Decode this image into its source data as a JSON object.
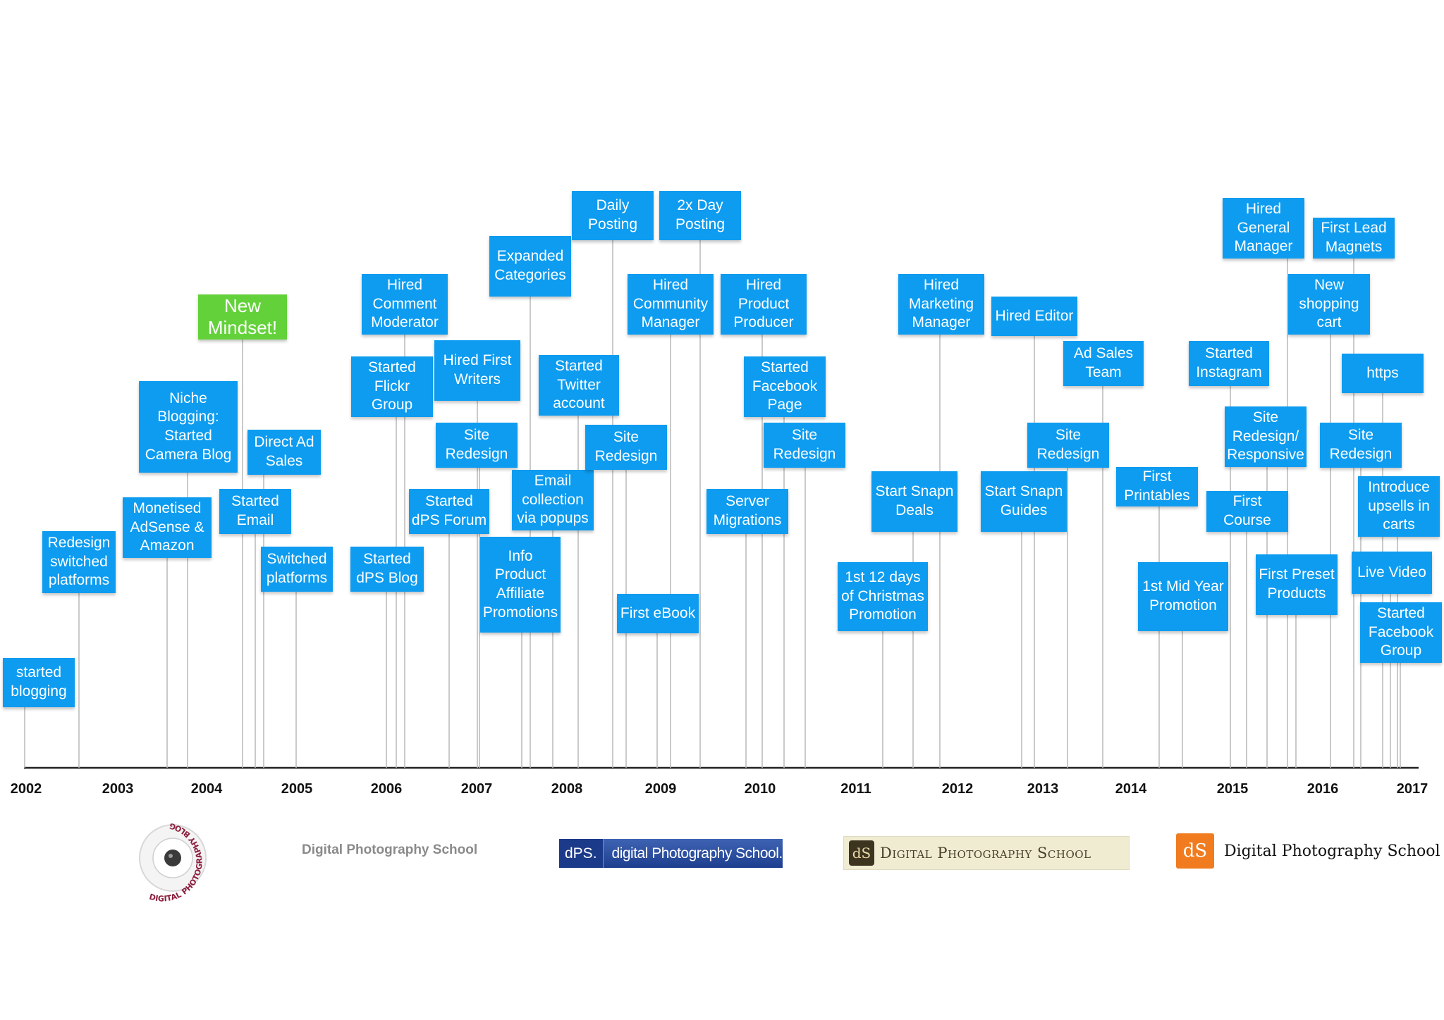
{
  "timeline": {
    "years": [
      "2002",
      "2003",
      "2004",
      "2005",
      "2006",
      "2007",
      "2008",
      "2009",
      "2010",
      "2011",
      "2012",
      "2013",
      "2014",
      "2015",
      "2016",
      "2017"
    ],
    "events": [
      {
        "label": "started\nblogging"
      },
      {
        "label": "Redesign\nswitched\nplatforms"
      },
      {
        "label": "Monetised\nAdSense &\nAmazon"
      },
      {
        "label": "Niche\nBlogging:\nStarted\nCamera Blog"
      },
      {
        "label": "New\nMindset!",
        "highlight": true
      },
      {
        "label": "Started\nEmail"
      },
      {
        "label": "Direct Ad\nSales"
      },
      {
        "label": "Switched\nplatforms"
      },
      {
        "label": "Started\ndPS Blog"
      },
      {
        "label": "Started\nFlickr\nGroup"
      },
      {
        "label": "Hired\nComment\nModerator"
      },
      {
        "label": "Started\ndPS Forum"
      },
      {
        "label": "Hired First\nWriters"
      },
      {
        "label": "Site\nRedesign"
      },
      {
        "label": "Info\nProduct\nAffiliate\nPromotions"
      },
      {
        "label": "Expanded\nCategories"
      },
      {
        "label": "Email\ncollection\nvia popups"
      },
      {
        "label": "Started\nTwitter\naccount"
      },
      {
        "label": "Daily\nPosting"
      },
      {
        "label": "Site\nRedesign"
      },
      {
        "label": "First eBook"
      },
      {
        "label": "Hired\nCommunity\nManager"
      },
      {
        "label": "2x Day\nPosting"
      },
      {
        "label": "Server\nMigrations"
      },
      {
        "label": "Hired\nProduct\nProducer"
      },
      {
        "label": "Started\nFacebook\nPage"
      },
      {
        "label": "Site\nRedesign"
      },
      {
        "label": "1st 12 days\nof Christmas\nPromotion"
      },
      {
        "label": "Start Snapn\nDeals"
      },
      {
        "label": "Hired\nMarketing\nManager"
      },
      {
        "label": "Start Snapn\nGuides"
      },
      {
        "label": "Hired Editor"
      },
      {
        "label": "Site\nRedesign"
      },
      {
        "label": "Ad Sales\nTeam"
      },
      {
        "label": "First\nPrintables"
      },
      {
        "label": "1st Mid Year\nPromotion"
      },
      {
        "label": "Started\nInstagram"
      },
      {
        "label": "First\nCourse"
      },
      {
        "label": "Site\nRedesign/\nResponsive"
      },
      {
        "label": "Hired\nGeneral\nManager"
      },
      {
        "label": "First Preset\nProducts"
      },
      {
        "label": "New\nshopping\ncart"
      },
      {
        "label": "First Lead\nMagnets"
      },
      {
        "label": "https"
      },
      {
        "label": "Site\nRedesign"
      },
      {
        "label": "Introduce\nupsells in\ncarts"
      },
      {
        "label": "Live Video"
      },
      {
        "label": "Started\nFacebook\nGroup"
      }
    ]
  },
  "logos": {
    "logo1_text": "DIGITAL PHOTOGRAPHY BLOG",
    "logo2_text": "Digital Photography School",
    "logo3_badge": "dPS.",
    "logo3_text": "digital Photography School.",
    "logo4_mark": "dS",
    "logo4_text": "Digital Photography School",
    "logo5_mark": "dS",
    "logo5_text": "Digital Photography School"
  },
  "colors": {
    "event_box": "#0d9cf0",
    "highlight_box": "#63d23a",
    "axis": "#222222",
    "stem": "#b8b8b8"
  }
}
